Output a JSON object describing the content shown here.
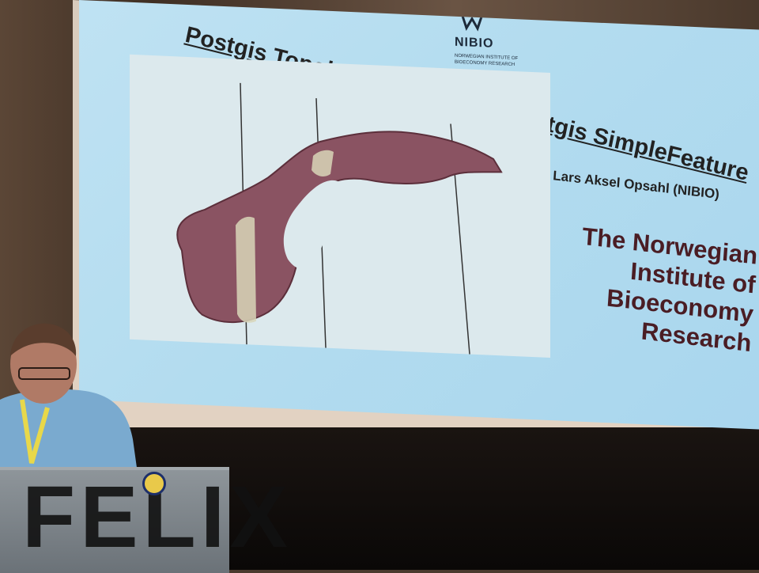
{
  "slide": {
    "logo": {
      "name": "NIBIO",
      "subtitle": "NORWEGIAN INSTITUTE OF BIOECONOMY RESEARCH"
    },
    "title": "Postgis Topology will replace Postgis SimpleFeature",
    "author": "Lars Aksel Opsahl (NIBIO)",
    "organization": [
      "The Norwegian",
      "Institute of",
      "Bioeconomy",
      "Research"
    ]
  },
  "podium": {
    "text": "FELIX"
  },
  "colors": {
    "slide_background": "#b3dcef",
    "map_panel": "#dce9ed",
    "map_fill": "#8a5362",
    "map_highlight": "#d8d6b8",
    "org_text": "#4a1d24"
  }
}
